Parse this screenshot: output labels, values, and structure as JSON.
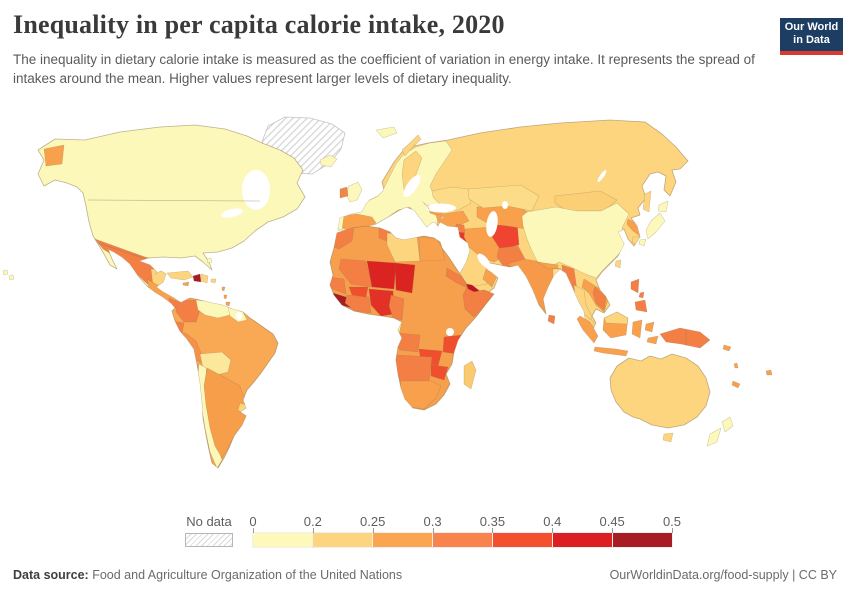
{
  "header": {
    "title": "Inequality in per capita calorie intake, 2020",
    "subtitle": "The inequality in dietary calorie intake is measured as the coefficient of variation in energy intake. It represents the spread of intakes around the mean. Higher values represent larger levels of dietary inequality.",
    "logo": {
      "line1": "Our World",
      "line2": "in Data",
      "bg": "#1d3d63",
      "stripe": "#d93a2d"
    }
  },
  "legend": {
    "no_data_label": "No data",
    "tick_labels": [
      "0",
      "0.2",
      "0.25",
      "0.3",
      "0.35",
      "0.4",
      "0.45",
      "0.5"
    ],
    "segments": [
      "#fcf9ba",
      "#fdd57e",
      "#faa54f",
      "#f8834c",
      "#f4502e",
      "#dc2021",
      "#a81c23"
    ]
  },
  "footer": {
    "source_label": "Data source:",
    "source_value": " Food and Agriculture Organization of the United Nations",
    "right_text": "OurWorldinData.org/food-supply | CC BY"
  },
  "map": {
    "ocean": "#ffffff",
    "border_color": "#8c7350",
    "no_data_stroke": "#c4c4c4",
    "value_bands": [
      {
        "range": "0-0.2",
        "color": "#fcf8ba"
      },
      {
        "range": "0.2-0.25",
        "color": "#fdd57e"
      },
      {
        "range": "0.25-0.3",
        "color": "#f9a04d"
      },
      {
        "range": "0.3-0.35",
        "color": "#f37f45"
      },
      {
        "range": "0.35-0.4",
        "color": "#f04f2e"
      },
      {
        "range": "0.4-0.45",
        "color": "#db2321"
      },
      {
        "range": "0.45-0.5",
        "color": "#a81c23"
      }
    ],
    "regions": [
      {
        "id": "greenland",
        "fill": "hatch"
      },
      {
        "id": "north-america",
        "fill": "#fcf8ba"
      },
      {
        "id": "na-chukotka",
        "fill": "#f9a04d"
      },
      {
        "id": "na-mexico",
        "fill": "#f37f45"
      },
      {
        "id": "na-yucatan",
        "fill": "#fdd57e"
      },
      {
        "id": "na-centralamerica",
        "fill": "#f9a04d"
      },
      {
        "id": "na-panama",
        "fill": "#f37f45"
      },
      {
        "id": "hudson-bay",
        "fill": "#ffffff"
      },
      {
        "id": "great-lakes",
        "fill": "#ffffff"
      },
      {
        "id": "na-borders",
        "fill": "none"
      },
      {
        "id": "cuba",
        "fill": "#fdd57e"
      },
      {
        "id": "haiti",
        "fill": "#a81c23"
      },
      {
        "id": "dominican",
        "fill": "#fdd57e"
      },
      {
        "id": "jamaica",
        "fill": "#f9a04d"
      },
      {
        "id": "puerto-rico",
        "fill": "#fdd57e"
      },
      {
        "id": "lesser-antilles",
        "fill": "#f9a04d"
      },
      {
        "id": "bahamas",
        "fill": "#fcf8ba"
      },
      {
        "id": "hawaii",
        "fill": "#fcf8ba"
      },
      {
        "id": "south-america",
        "fill": "#f9a854"
      },
      {
        "id": "sa-colombia",
        "fill": "#f37f45"
      },
      {
        "id": "sa-venezuela",
        "fill": "#fcf8ba"
      },
      {
        "id": "sa-guyanas",
        "fill": "#fcf8ba"
      },
      {
        "id": "suriname-w",
        "fill": "#ffffff"
      },
      {
        "id": "sa-ecuador",
        "fill": "#f37f45"
      },
      {
        "id": "sa-peru",
        "fill": "#f59149"
      },
      {
        "id": "sa-bolivia",
        "fill": "#fbe89b"
      },
      {
        "id": "sa-chile",
        "fill": "#fcf8ba"
      },
      {
        "id": "sa-argentina",
        "fill": "#f79e4b"
      },
      {
        "id": "sa-uruguay",
        "fill": "#fdd57e"
      },
      {
        "id": "eurasia",
        "fill": "#fdd57e"
      },
      {
        "id": "eur-europe",
        "fill": "#fcf8ba"
      },
      {
        "id": "eur-sweden",
        "fill": "#fdd57e"
      },
      {
        "id": "eur-iberia",
        "fill": "#f9a04d"
      },
      {
        "id": "eur-portugal",
        "fill": "#fcf8ba"
      },
      {
        "id": "eur-easteurope",
        "fill": "#fcdc88"
      },
      {
        "id": "eur-balkans",
        "fill": "#f9a04d"
      },
      {
        "id": "eur-turkey",
        "fill": "#f9a04d"
      },
      {
        "id": "eur-levant",
        "fill": "#f37f45"
      },
      {
        "id": "eur-iraq",
        "fill": "#e7392a"
      },
      {
        "id": "eur-saudi",
        "fill": "#fdd57e"
      },
      {
        "id": "eur-yemen",
        "fill": "#c41220"
      },
      {
        "id": "eur-oman",
        "fill": "#f9a04d"
      },
      {
        "id": "eur-iran",
        "fill": "#f9a04d"
      },
      {
        "id": "eur-afghanistan",
        "fill": "#ef4430"
      },
      {
        "id": "eur-pakistan",
        "fill": "#f37f45"
      },
      {
        "id": "eur-centralasia",
        "fill": "#f9a04d"
      },
      {
        "id": "eur-kazakhstan",
        "fill": "#fcdc88"
      },
      {
        "id": "eur-mongolia",
        "fill": "#fbcf75"
      },
      {
        "id": "eur-china",
        "fill": "#fcf8ba"
      },
      {
        "id": "eur-nepal",
        "fill": "#f9a04d"
      },
      {
        "id": "eur-india",
        "fill": "#f69a49"
      },
      {
        "id": "eur-bangladesh",
        "fill": "#fce08b"
      },
      {
        "id": "eur-myanmar",
        "fill": "#f37f45"
      },
      {
        "id": "eur-thailand",
        "fill": "#fdd57e"
      },
      {
        "id": "eur-laosviet",
        "fill": "#f9a04d"
      },
      {
        "id": "eur-vietnam",
        "fill": "#f37f45"
      },
      {
        "id": "eur-malay",
        "fill": "#fdd57e"
      },
      {
        "id": "eur-nkorea",
        "fill": "#f9a04d"
      },
      {
        "id": "eur-skorea",
        "fill": "#fdd57e"
      },
      {
        "id": "baltic",
        "fill": "#ffffff"
      },
      {
        "id": "black-sea",
        "fill": "#ffffff"
      },
      {
        "id": "caspian",
        "fill": "#ffffff"
      },
      {
        "id": "persian-gulf",
        "fill": "#ffffff"
      },
      {
        "id": "aral",
        "fill": "#ffffff"
      },
      {
        "id": "baikal",
        "fill": "#ffffff"
      },
      {
        "id": "africa",
        "fill": "#f6a04e"
      },
      {
        "id": "af-morocco",
        "fill": "#f37f45"
      },
      {
        "id": "af-tunisia",
        "fill": "#f37f45"
      },
      {
        "id": "af-libya",
        "fill": "#fdd57e"
      },
      {
        "id": "af-egypt",
        "fill": "#f9a04d"
      },
      {
        "id": "af-mali",
        "fill": "#f37f45"
      },
      {
        "id": "af-niger",
        "fill": "#db2321"
      },
      {
        "id": "af-chad",
        "fill": "#db2321"
      },
      {
        "id": "af-senegal",
        "fill": "#f37f45"
      },
      {
        "id": "af-sierraliberia",
        "fill": "#a81c23"
      },
      {
        "id": "af-ivoryghana",
        "fill": "#f37f45"
      },
      {
        "id": "af-burkina",
        "fill": "#f04f2e"
      },
      {
        "id": "af-nigeria",
        "fill": "#e23127"
      },
      {
        "id": "af-cameroon",
        "fill": "#f37f45"
      },
      {
        "id": "af-gabon",
        "fill": "#fbeda0"
      },
      {
        "id": "af-somalia",
        "fill": "#f37f45"
      },
      {
        "id": "af-eritrea",
        "fill": "#f37f45"
      },
      {
        "id": "af-tanzania",
        "fill": "#f04f2e"
      },
      {
        "id": "af-zambia",
        "fill": "#f04f2e"
      },
      {
        "id": "af-zimbabwe",
        "fill": "#f04f2e"
      },
      {
        "id": "af-angola",
        "fill": "#f37f45"
      },
      {
        "id": "af-namibia",
        "fill": "#f37f45"
      },
      {
        "id": "af-southafrica",
        "fill": "#f9a04d"
      },
      {
        "id": "lake-victoria",
        "fill": "#ffffff"
      },
      {
        "id": "iceland",
        "fill": "#fcf8ba"
      },
      {
        "id": "svalbard",
        "fill": "#fcf8ba"
      },
      {
        "id": "uk",
        "fill": "#fcf8ba"
      },
      {
        "id": "ireland",
        "fill": "#f0874a"
      },
      {
        "id": "novaya-zemlya",
        "fill": "#fdd57e"
      },
      {
        "id": "sakhalin",
        "fill": "#fdd57e"
      },
      {
        "id": "japan",
        "fill": "#fcf8ba"
      },
      {
        "id": "taiwan",
        "fill": "#fdd57e"
      },
      {
        "id": "sri-lanka",
        "fill": "#f37f45"
      },
      {
        "id": "philippines",
        "fill": "#f37f45"
      },
      {
        "id": "sumatra",
        "fill": "#f9a04d"
      },
      {
        "id": "java",
        "fill": "#f9a04d"
      },
      {
        "id": "borneo",
        "fill": "#f9a04d"
      },
      {
        "id": "borneo-malaysia",
        "fill": "#fdd57e"
      },
      {
        "id": "sulawesi",
        "fill": "#f9a04d"
      },
      {
        "id": "indonesia-east",
        "fill": "#f9a04d"
      },
      {
        "id": "png",
        "fill": "#f37f45"
      },
      {
        "id": "png-border",
        "fill": "none"
      },
      {
        "id": "australia",
        "fill": "#fdd57e"
      },
      {
        "id": "tasmania",
        "fill": "#fdd57e"
      },
      {
        "id": "new-zealand",
        "fill": "#fcf8ba"
      },
      {
        "id": "madagascar",
        "fill": "#fbca70"
      },
      {
        "id": "solomon",
        "fill": "#f9a04d"
      },
      {
        "id": "vanuatu",
        "fill": "#f9a04d"
      },
      {
        "id": "fiji",
        "fill": "#f9a04d"
      },
      {
        "id": "new-caledonia",
        "fill": "#f9a04d"
      }
    ]
  }
}
